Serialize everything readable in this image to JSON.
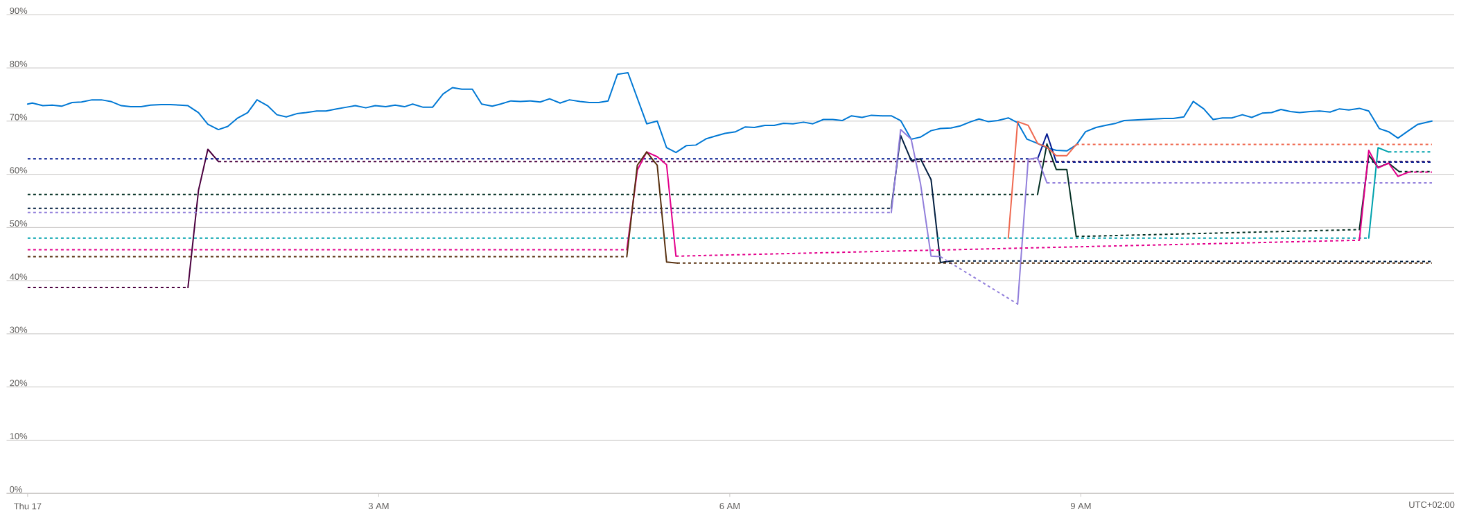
{
  "chart_data": {
    "type": "line",
    "xlim": [
      -0.18,
      12.19
    ],
    "xticks": [
      {
        "value": 0,
        "label": "Thu 17"
      },
      {
        "value": 3,
        "label": "3 AM"
      },
      {
        "value": 6,
        "label": "6 AM"
      },
      {
        "value": 9,
        "label": "9 AM"
      }
    ],
    "ylim": [
      0,
      90
    ],
    "yticks": [
      {
        "value": 0,
        "label": "0%"
      },
      {
        "value": 10,
        "label": "10%"
      },
      {
        "value": 20,
        "label": "20%"
      },
      {
        "value": 30,
        "label": "30%"
      },
      {
        "value": 40,
        "label": "40%"
      },
      {
        "value": 50,
        "label": "50%"
      },
      {
        "value": 60,
        "label": "60%"
      },
      {
        "value": 70,
        "label": "70%"
      },
      {
        "value": 80,
        "label": "80%"
      },
      {
        "value": 90,
        "label": "90%"
      }
    ],
    "grid": "y",
    "annotations": [
      "UTC+02:00"
    ],
    "series": [
      {
        "color": "#0078d4",
        "line_style": "solid",
        "x": [
          0,
          0.04,
          0.13,
          0.21,
          0.29,
          0.38,
          0.46,
          0.55,
          0.63,
          0.71,
          0.8,
          0.88,
          0.97,
          1.05,
          1.14,
          1.22,
          1.3,
          1.37,
          1.46,
          1.54,
          1.63,
          1.71,
          1.79,
          1.88,
          1.96,
          2.05,
          2.13,
          2.21,
          2.3,
          2.38,
          2.47,
          2.55,
          2.64,
          2.72,
          2.8,
          2.89,
          2.97,
          3.06,
          3.14,
          3.22,
          3.29,
          3.38,
          3.46,
          3.55,
          3.63,
          3.71,
          3.8,
          3.88,
          3.97,
          4.04,
          4.13,
          4.21,
          4.3,
          4.38,
          4.46,
          4.55,
          4.63,
          4.72,
          4.8,
          4.88,
          4.96,
          5.04,
          5.13,
          5.29,
          5.38,
          5.46,
          5.54,
          5.63,
          5.71,
          5.8,
          5.88,
          5.96,
          6.05,
          6.13,
          6.21,
          6.3,
          6.38,
          6.46,
          6.54,
          6.63,
          6.71,
          6.8,
          6.88,
          6.96,
          7.04,
          7.13,
          7.21,
          7.3,
          7.38,
          7.46,
          7.55,
          7.63,
          7.72,
          7.8,
          7.89,
          7.97,
          8.06,
          8.13,
          8.21,
          8.29,
          8.38,
          8.46,
          8.54,
          8.62,
          8.71,
          8.79,
          8.88,
          8.96,
          9.04,
          9.13,
          9.21,
          9.3,
          9.37,
          9.46,
          9.54,
          9.63,
          9.71,
          9.79,
          9.88,
          9.96,
          10.05,
          10.13,
          10.21,
          10.29,
          10.38,
          10.46,
          10.55,
          10.63,
          10.71,
          10.79,
          10.87,
          10.96,
          11.04,
          11.13,
          11.21,
          11.29,
          11.38,
          11.46,
          11.55,
          11.63,
          11.71,
          11.8,
          11.88,
          12.0
        ],
        "values": [
          73.2,
          73.4,
          72.9,
          73.0,
          72.8,
          73.5,
          73.6,
          74.0,
          74.0,
          73.7,
          72.9,
          72.7,
          72.7,
          73.0,
          73.1,
          73.1,
          73.0,
          72.9,
          71.6,
          69.4,
          68.4,
          69.0,
          70.5,
          71.6,
          74.0,
          72.9,
          71.2,
          70.8,
          71.4,
          71.6,
          71.9,
          71.9,
          72.3,
          72.6,
          72.9,
          72.5,
          72.9,
          72.7,
          73.0,
          72.7,
          73.2,
          72.6,
          72.6,
          75.1,
          76.3,
          76.0,
          76.0,
          73.2,
          72.8,
          73.2,
          73.8,
          73.7,
          73.8,
          73.6,
          74.2,
          73.4,
          74.0,
          73.7,
          73.5,
          73.5,
          73.8,
          78.8,
          79.1,
          69.5,
          70.0,
          65.0,
          64.1,
          65.4,
          65.5,
          66.7,
          67.2,
          67.7,
          68.0,
          68.9,
          68.8,
          69.2,
          69.2,
          69.6,
          69.5,
          69.8,
          69.5,
          70.3,
          70.3,
          70.1,
          71.0,
          70.7,
          71.1,
          71.0,
          71.0,
          70.1,
          66.6,
          67.0,
          68.2,
          68.6,
          68.7,
          69.1,
          69.9,
          70.4,
          69.9,
          70.1,
          70.6,
          69.7,
          66.6,
          65.9,
          65.0,
          64.5,
          64.4,
          65.5,
          68.0,
          68.8,
          69.2,
          69.6,
          70.1,
          70.2,
          70.3,
          70.4,
          70.5,
          70.5,
          70.8,
          73.7,
          72.3,
          70.3,
          70.6,
          70.6,
          71.2,
          70.7,
          71.5,
          71.6,
          72.2,
          71.8,
          71.6,
          71.8,
          71.9,
          71.7,
          72.3,
          72.1,
          72.4,
          71.9,
          68.6,
          68.0,
          66.8,
          68.2,
          69.4,
          70.0
        ]
      },
      {
        "color": "#4b003f",
        "line_style": "dashed",
        "x": [
          0,
          1.37
        ],
        "values": [
          38.7,
          38.7
        ]
      },
      {
        "color": "#4b003f",
        "line_style": "solid",
        "x": [
          1.37,
          1.46,
          1.54,
          1.63
        ],
        "values": [
          38.7,
          57.0,
          64.7,
          62.4
        ]
      },
      {
        "color": "#4b003f",
        "line_style": "dashed",
        "x": [
          1.63,
          12.0
        ],
        "values": [
          62.4,
          62.4
        ]
      },
      {
        "color": "#00188f",
        "line_style": "dashed",
        "x": [
          0,
          8.63
        ],
        "values": [
          62.9,
          62.9
        ]
      },
      {
        "color": "#00188f",
        "line_style": "solid",
        "x": [
          8.63,
          8.71,
          8.79
        ],
        "values": [
          62.9,
          67.6,
          62.3
        ]
      },
      {
        "color": "#00188f",
        "line_style": "dashed",
        "x": [
          8.79,
          12.0
        ],
        "values": [
          62.3,
          62.3
        ]
      },
      {
        "color": "#022f22",
        "line_style": "dashed",
        "x": [
          0,
          8.63
        ],
        "values": [
          56.2,
          56.2
        ]
      },
      {
        "color": "#022f22",
        "line_style": "solid",
        "x": [
          8.63,
          8.71,
          8.79,
          8.88,
          8.96
        ],
        "values": [
          56.2,
          65.7,
          60.9,
          60.9,
          48.3
        ]
      },
      {
        "color": "#022f22",
        "line_style": "dashed",
        "x": [
          8.96,
          11.38
        ],
        "values": [
          48.3,
          49.6
        ]
      },
      {
        "color": "#022f22",
        "line_style": "solid",
        "x": [
          11.38,
          11.46,
          11.54,
          11.63,
          11.72
        ],
        "values": [
          49.6,
          63.6,
          61.3,
          62.1,
          60.5
        ]
      },
      {
        "color": "#022f22",
        "line_style": "dashed",
        "x": [
          11.72,
          12.0
        ],
        "values": [
          60.5,
          60.5
        ]
      },
      {
        "color": "#001d3f",
        "line_style": "dashed",
        "x": [
          0,
          7.38
        ],
        "values": [
          53.6,
          53.6
        ]
      },
      {
        "color": "#001d3f",
        "line_style": "solid",
        "x": [
          7.38,
          7.46,
          7.55,
          7.63,
          7.72,
          7.8,
          7.89
        ],
        "values": [
          53.6,
          67.3,
          62.6,
          62.9,
          59.0,
          43.4,
          43.7
        ]
      },
      {
        "color": "#001d3f",
        "line_style": "dashed",
        "x": [
          7.89,
          12.0
        ],
        "values": [
          43.7,
          43.6
        ]
      },
      {
        "color": "#917edb",
        "line_style": "dashed",
        "x": [
          0,
          7.38
        ],
        "values": [
          52.8,
          52.8
        ]
      },
      {
        "color": "#917edb",
        "line_style": "solid",
        "x": [
          7.38,
          7.46,
          7.55,
          7.63,
          7.72,
          7.8
        ],
        "values": [
          52.8,
          68.4,
          66.6,
          58.2,
          44.6,
          44.5
        ]
      },
      {
        "color": "#917edb",
        "line_style": "dashed",
        "x": [
          7.8,
          8.46
        ],
        "values": [
          44.5,
          35.6
        ]
      },
      {
        "color": "#917edb",
        "line_style": "solid",
        "x": [
          8.46,
          8.55,
          8.63,
          8.71
        ],
        "values": [
          35.6,
          62.8,
          63.1,
          58.4
        ]
      },
      {
        "color": "#917edb",
        "line_style": "dashed",
        "x": [
          8.71,
          12.0
        ],
        "values": [
          58.4,
          58.4
        ]
      },
      {
        "color": "#00a2ad",
        "line_style": "dashed",
        "x": [
          0,
          11.46
        ],
        "values": [
          48.0,
          48.0
        ]
      },
      {
        "color": "#00a2ad",
        "line_style": "solid",
        "x": [
          11.46,
          11.54,
          11.63
        ],
        "values": [
          48.0,
          65.0,
          64.2
        ]
      },
      {
        "color": "#00a2ad",
        "line_style": "dashed",
        "x": [
          11.63,
          12.0
        ],
        "values": [
          64.2,
          64.2
        ]
      },
      {
        "color": "#e3008c",
        "line_style": "dashed",
        "x": [
          0,
          5.12
        ],
        "values": [
          45.8,
          45.8
        ]
      },
      {
        "color": "#e3008c",
        "line_style": "solid",
        "x": [
          5.12,
          5.21,
          5.29,
          5.38,
          5.46,
          5.54
        ],
        "values": [
          45.8,
          60.8,
          64.2,
          63.3,
          61.8,
          44.6
        ]
      },
      {
        "color": "#e3008c",
        "line_style": "dashed",
        "x": [
          5.54,
          11.38
        ],
        "values": [
          44.6,
          47.6
        ]
      },
      {
        "color": "#e3008c",
        "line_style": "solid",
        "x": [
          11.38,
          11.46,
          11.54,
          11.63,
          11.71,
          11.8
        ],
        "values": [
          47.6,
          64.5,
          61.2,
          62.1,
          59.6,
          60.4
        ]
      },
      {
        "color": "#e3008c",
        "line_style": "dashed",
        "x": [
          11.8,
          12.0
        ],
        "values": [
          60.4,
          60.4
        ]
      },
      {
        "color": "#57300f",
        "line_style": "dashed",
        "x": [
          0,
          5.12
        ],
        "values": [
          44.5,
          44.5
        ]
      },
      {
        "color": "#57300f",
        "line_style": "solid",
        "x": [
          5.12,
          5.21,
          5.29,
          5.38,
          5.46,
          5.55
        ],
        "values": [
          44.5,
          61.7,
          64.2,
          61.7,
          43.5,
          43.3
        ]
      },
      {
        "color": "#57300f",
        "line_style": "dashed",
        "x": [
          5.55,
          12.0
        ],
        "values": [
          43.3,
          43.3
        ]
      },
      {
        "color": "#ef6950",
        "line_style": "solid",
        "x": [
          8.38,
          8.46,
          8.55,
          8.63,
          8.71,
          8.79,
          8.88,
          8.96
        ],
        "values": [
          48.0,
          69.9,
          69.2,
          65.8,
          65.1,
          63.5,
          63.5,
          65.6
        ]
      },
      {
        "color": "#ef6950",
        "line_style": "dashed",
        "x": [
          8.96,
          12.0
        ],
        "values": [
          65.6,
          65.6
        ]
      }
    ]
  }
}
